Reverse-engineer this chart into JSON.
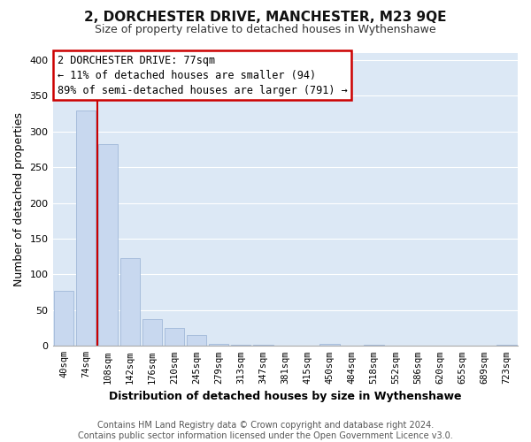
{
  "title": "2, DORCHESTER DRIVE, MANCHESTER, M23 9QE",
  "subtitle": "Size of property relative to detached houses in Wythenshawe",
  "xlabel": "Distribution of detached houses by size in Wythenshawe",
  "ylabel": "Number of detached properties",
  "footer_line1": "Contains HM Land Registry data © Crown copyright and database right 2024.",
  "footer_line2": "Contains public sector information licensed under the Open Government Licence v3.0.",
  "bar_labels": [
    "40sqm",
    "74sqm",
    "108sqm",
    "142sqm",
    "176sqm",
    "210sqm",
    "245sqm",
    "279sqm",
    "313sqm",
    "347sqm",
    "381sqm",
    "415sqm",
    "450sqm",
    "484sqm",
    "518sqm",
    "552sqm",
    "586sqm",
    "620sqm",
    "655sqm",
    "689sqm",
    "723sqm"
  ],
  "bar_heights": [
    77,
    330,
    283,
    123,
    37,
    25,
    15,
    3,
    1,
    1,
    0,
    0,
    3,
    0,
    2,
    0,
    0,
    0,
    0,
    0,
    2
  ],
  "bar_color": "#c8d8ef",
  "bar_edge_color": "#a0b8d8",
  "annotation_title": "2 DORCHESTER DRIVE: 77sqm",
  "annotation_line1": "← 11% of detached houses are smaller (94)",
  "annotation_line2": "89% of semi-detached houses are larger (791) →",
  "ylim": [
    0,
    410
  ],
  "yticks": [
    0,
    50,
    100,
    150,
    200,
    250,
    300,
    350,
    400
  ],
  "vline_color": "#cc0000",
  "vline_x": 1.5,
  "bg_color": "#ffffff",
  "plot_bg_color": "#dce8f5",
  "grid_color": "#ffffff",
  "annotation_box_color": "#ffffff",
  "annotation_border_color": "#cc0000",
  "title_fontsize": 11,
  "subtitle_fontsize": 9,
  "ylabel_fontsize": 9,
  "xlabel_fontsize": 9,
  "tick_fontsize": 7.5,
  "annotation_fontsize": 8.5,
  "footer_fontsize": 7
}
